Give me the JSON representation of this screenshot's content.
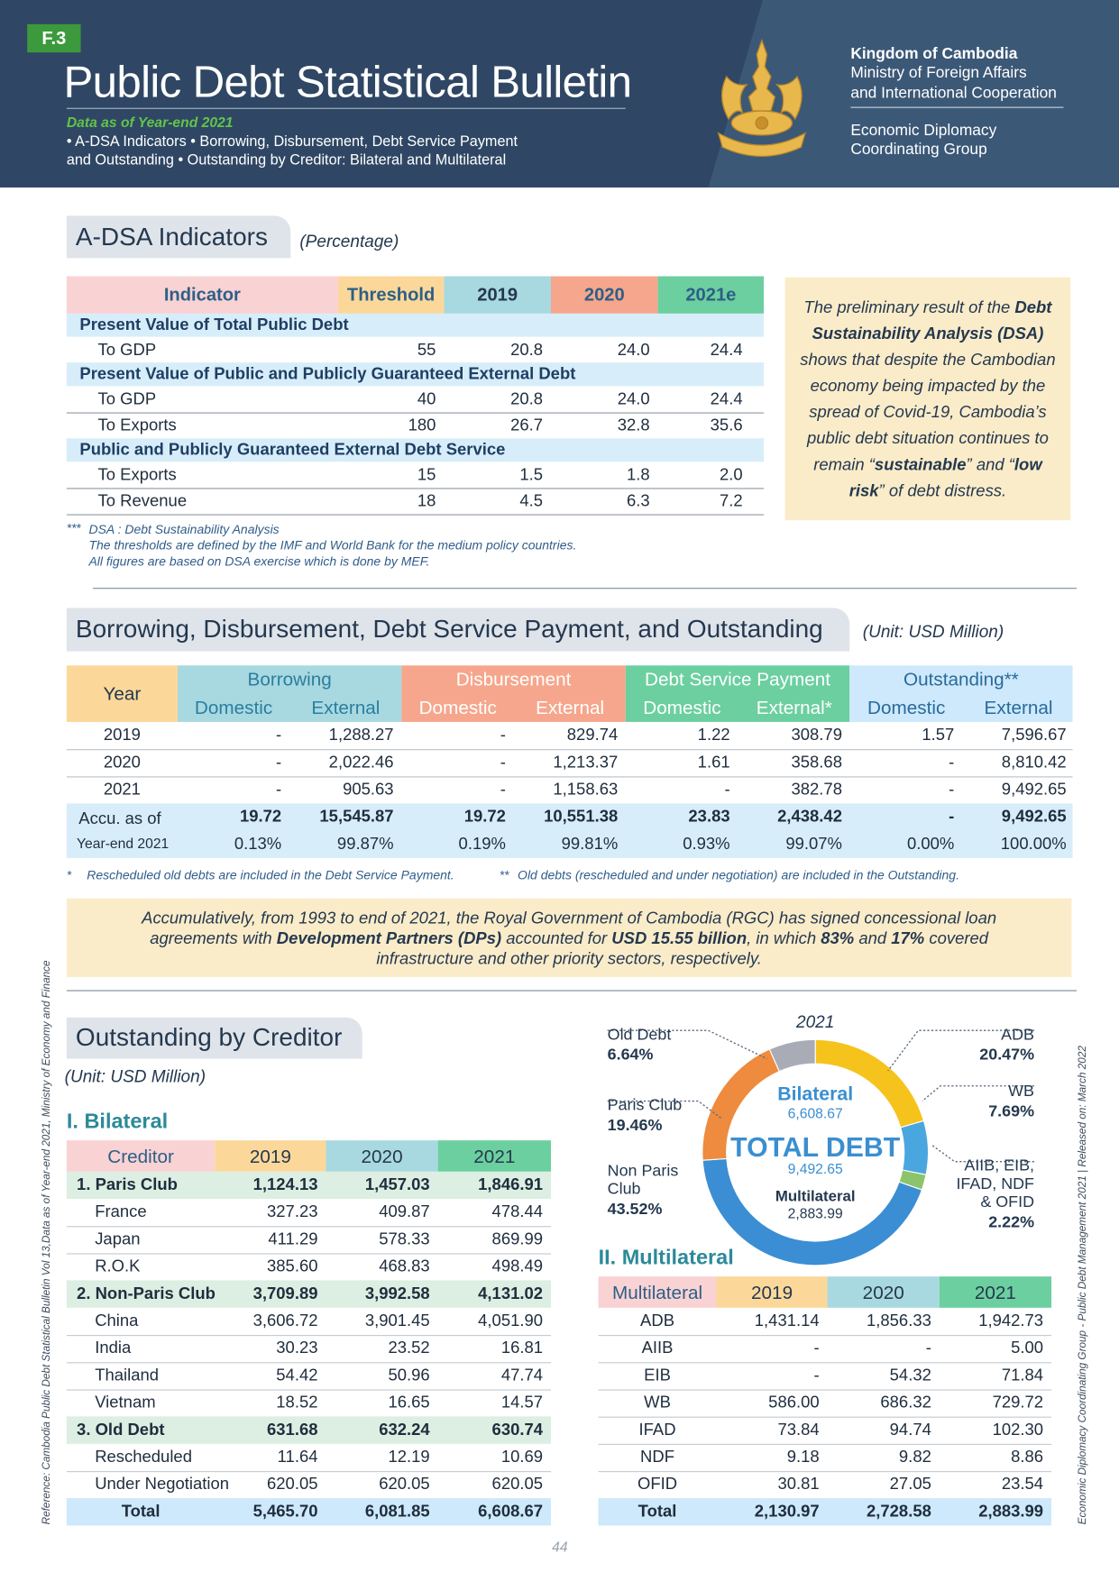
{
  "header": {
    "tag": "F.3",
    "title": "Public Debt Statistical Bulletin",
    "subtitle": "Data as of Year-end 2021",
    "topics": [
      "• A-DSA Indicators • Borrowing, Disbursement, Debt Service Payment",
      "and Outstanding • Outstanding by Creditor: Bilateral and Multilateral"
    ],
    "org": [
      "Kingdom of Cambodia",
      "Ministry of Foreign Affairs",
      "and International Cooperation"
    ],
    "group": [
      "Economic Diplomacy",
      "Coordinating Group"
    ]
  },
  "adsa": {
    "heading": "A-DSA Indicators",
    "unit": "(Percentage)",
    "columns": [
      "Indicator",
      "Threshold",
      "2019",
      "2020",
      "2021e"
    ],
    "groups": [
      {
        "title": "Present Value of Total Public Debt",
        "rows": [
          [
            "To GDP",
            "55",
            "20.8",
            "24.0",
            "24.4"
          ]
        ]
      },
      {
        "title": "Present Value of Public and Publicly Guaranteed External Debt",
        "rows": [
          [
            "To GDP",
            "40",
            "20.8",
            "24.0",
            "24.4"
          ],
          [
            "To Exports",
            "180",
            "26.7",
            "32.8",
            "35.6"
          ]
        ]
      },
      {
        "title": "Public and Publicly Guaranteed External Debt Service",
        "rows": [
          [
            "To Exports",
            "15",
            "1.5",
            "1.8",
            "2.0"
          ],
          [
            "To Revenue",
            "18",
            "4.5",
            "6.3",
            "7.2"
          ]
        ]
      }
    ],
    "notes_mark": "***",
    "notes": [
      "DSA : Debt Sustainability Analysis",
      "The thresholds are defined by the IMF and World Bank for the medium policy countries.",
      "All figures are based on DSA exercise which is done by MEF."
    ],
    "callout": [
      {
        "text": "The preliminary result of the "
      },
      {
        "text": "Debt Sustainability Analysis (DSA)",
        "bold": true
      },
      {
        "text": " shows that despite the Cambodian economy being impacted by the spread of Covid-19, Cambodia’s public debt situation continues to remain “"
      },
      {
        "text": "sustainable",
        "bold": true
      },
      {
        "text": "” and “"
      },
      {
        "text": "low risk",
        "bold": true
      },
      {
        "text": "” of debt distress."
      }
    ]
  },
  "borrowing": {
    "heading": "Borrowing, Disbursement, Debt Service Payment, and Outstanding",
    "unit": "(Unit: USD Million)",
    "groups": [
      "Year",
      "Borrowing",
      "Disbursement",
      "Debt Service Payment",
      "Outstanding**"
    ],
    "subcolumns": [
      "Domestic",
      "External",
      "Domestic",
      "External",
      "Domestic",
      "External*",
      "Domestic",
      "External"
    ],
    "rows": [
      {
        "year": "2019",
        "values": [
          "-",
          "1,288.27",
          "-",
          "829.74",
          "1.22",
          "308.79",
          "1.57",
          "7,596.67"
        ]
      },
      {
        "year": "2020",
        "values": [
          "-",
          "2,022.46",
          "-",
          "1,213.37",
          "1.61",
          "358.68",
          "-",
          "8,810.42"
        ]
      },
      {
        "year": "2021",
        "values": [
          "-",
          "905.63",
          "-",
          "1,158.63",
          "-",
          "382.78",
          "-",
          "9,492.65"
        ]
      }
    ],
    "accu": {
      "label": [
        "Accu. as of",
        "Year-end 2021"
      ],
      "totals": [
        "19.72",
        "15,545.87",
        "19.72",
        "10,551.38",
        "23.83",
        "2,438.42",
        "-",
        "9,492.65"
      ],
      "shares": [
        "0.13%",
        "99.87%",
        "0.19%",
        "99.81%",
        "0.93%",
        "99.07%",
        "0.00%",
        "100.00%"
      ]
    },
    "notes": [
      {
        "mark": "*",
        "text": "Rescheduled old debts are included in the Debt Service Payment."
      },
      {
        "mark": "**",
        "text": "Old debts (rescheduled and under negotiation) are included in the Outstanding."
      }
    ],
    "summary": [
      {
        "text": "Accumulatively, from 1993 to end of 2021, the Royal Government of Cambodia (RGC) has signed concessional loan agreements with "
      },
      {
        "text": "Development Partners (DPs)",
        "bold": true
      },
      {
        "text": " accounted for "
      },
      {
        "text": "USD 15.55 billion",
        "bold": true
      },
      {
        "text": ", in which "
      },
      {
        "text": "83%",
        "bold": true
      },
      {
        "text": " and "
      },
      {
        "text": "17%",
        "bold": true
      },
      {
        "text": " covered infrastructure and other priority sectors, respectively."
      }
    ]
  },
  "creditor": {
    "heading": "Outstanding by Creditor",
    "unit": "(Unit: USD Million)",
    "bilateral": {
      "title": "I. Bilateral",
      "columns": [
        "Creditor",
        "2019",
        "2020",
        "2021"
      ],
      "rows": [
        {
          "kind": "group",
          "cells": [
            "1. Paris Club",
            "1,124.13",
            "1,457.03",
            "1,846.91"
          ]
        },
        {
          "kind": "item",
          "cells": [
            "France",
            "327.23",
            "409.87",
            "478.44"
          ]
        },
        {
          "kind": "item",
          "cells": [
            "Japan",
            "411.29",
            "578.33",
            "869.99"
          ]
        },
        {
          "kind": "item",
          "cells": [
            "R.O.K",
            "385.60",
            "468.83",
            "498.49"
          ]
        },
        {
          "kind": "group",
          "cells": [
            "2. Non-Paris Club",
            "3,709.89",
            "3,992.58",
            "4,131.02"
          ]
        },
        {
          "kind": "item",
          "cells": [
            "China",
            "3,606.72",
            "3,901.45",
            "4,051.90"
          ]
        },
        {
          "kind": "item",
          "cells": [
            "India",
            "30.23",
            "23.52",
            "16.81"
          ]
        },
        {
          "kind": "item",
          "cells": [
            "Thailand",
            "54.42",
            "50.96",
            "47.74"
          ]
        },
        {
          "kind": "item",
          "cells": [
            "Vietnam",
            "18.52",
            "16.65",
            "14.57"
          ]
        },
        {
          "kind": "group",
          "cells": [
            "3. Old Debt",
            "631.68",
            "632.24",
            "630.74"
          ]
        },
        {
          "kind": "item",
          "cells": [
            "Rescheduled",
            "11.64",
            "12.19",
            "10.69"
          ]
        },
        {
          "kind": "item",
          "cells": [
            "Under Negotiation",
            "620.05",
            "620.05",
            "620.05"
          ]
        },
        {
          "kind": "total",
          "cells": [
            "Total",
            "5,465.70",
            "6,081.85",
            "6,608.67"
          ]
        }
      ]
    },
    "multilateral": {
      "title": "II. Multilateral",
      "columns": [
        "Multilateral",
        "2019",
        "2020",
        "2021"
      ],
      "rows": [
        {
          "kind": "item",
          "cells": [
            "ADB",
            "1,431.14",
            "1,856.33",
            "1,942.73"
          ]
        },
        {
          "kind": "item",
          "cells": [
            "AIIB",
            "-",
            "-",
            "5.00"
          ]
        },
        {
          "kind": "item",
          "cells": [
            "EIB",
            "-",
            "54.32",
            "71.84"
          ]
        },
        {
          "kind": "item",
          "cells": [
            "WB",
            "586.00",
            "686.32",
            "729.72"
          ]
        },
        {
          "kind": "item",
          "cells": [
            "IFAD",
            "73.84",
            "94.74",
            "102.30"
          ]
        },
        {
          "kind": "item",
          "cells": [
            "NDF",
            "9.18",
            "9.82",
            "8.86"
          ]
        },
        {
          "kind": "item",
          "cells": [
            "OFID",
            "30.81",
            "27.05",
            "23.54"
          ]
        },
        {
          "kind": "total",
          "cells": [
            "Total",
            "2,130.97",
            "2,728.58",
            "2,883.99"
          ]
        }
      ]
    },
    "donut": {
      "type": "pie",
      "year": "2021",
      "bilateral_label": "Bilateral",
      "bilateral_value": "6,608.67",
      "total_label": "TOTAL DEBT",
      "total_value": "9,492.65",
      "multilateral_label": "Multilateral",
      "multilateral_value": "2,883.99",
      "segments": [
        {
          "name_lines": [
            "ADB"
          ],
          "value": 20.47,
          "label": "20.47%",
          "color": "#f6c31c"
        },
        {
          "name_lines": [
            "WB"
          ],
          "value": 7.69,
          "label": "7.69%",
          "color": "#4aa6df"
        },
        {
          "name_lines": [
            "AIIB, EIB,",
            "IFAD, NDF",
            "& OFID"
          ],
          "value": 2.22,
          "label": "2.22%",
          "color": "#8cc46c"
        },
        {
          "name_lines": [
            "Non Paris",
            "Club"
          ],
          "value": 43.52,
          "label": "43.52%",
          "color": "#3b8ed3"
        },
        {
          "name_lines": [
            "Paris Club"
          ],
          "value": 19.46,
          "label": "19.46%",
          "color": "#ee8b3e"
        },
        {
          "name_lines": [
            "Old Debt"
          ],
          "value": 6.64,
          "label": "6.64%",
          "color": "#a9acb6"
        }
      ]
    }
  },
  "footer": {
    "page": "44",
    "left_note": "Reference: Cambodia Public Debt Statistical Bulletin Vol 13,Data as of Year-end 2021,  Ministry of Economy and Finance",
    "right_note": "Economic Diplomacy Coordinating Group - Public Debt Management 2021  |  Released on: March 2022"
  }
}
